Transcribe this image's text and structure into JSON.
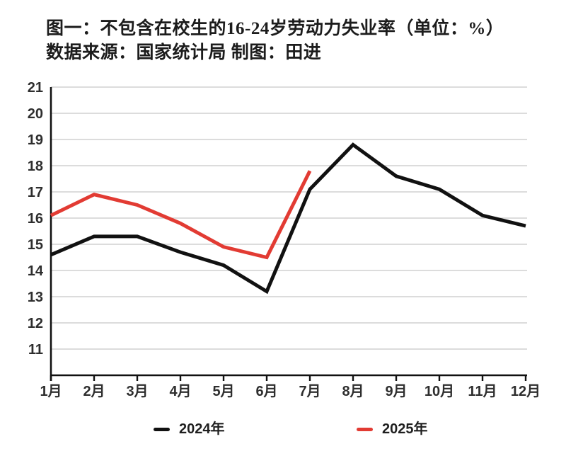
{
  "title": {
    "line1": "图一：不包含在校生的16-24岁劳动力失业率（单位：%）",
    "line2": "数据来源：国家统计局 制图：田进"
  },
  "chart_data": {
    "type": "line",
    "title": "不包含在校生的16-24岁劳动力失业率（单位：%）",
    "source": "数据来源：国家统计局 制图：田进",
    "categories": [
      "1月",
      "2月",
      "3月",
      "4月",
      "5月",
      "6月",
      "7月",
      "8月",
      "9月",
      "10月",
      "11月",
      "12月"
    ],
    "series": [
      {
        "name": "2024年",
        "color": "#111111",
        "values": [
          14.6,
          15.3,
          15.3,
          14.7,
          14.2,
          13.2,
          17.1,
          18.8,
          17.6,
          17.1,
          16.1,
          15.7
        ]
      },
      {
        "name": "2025年",
        "color": "#e23b33",
        "values": [
          16.1,
          16.9,
          16.5,
          15.8,
          14.9,
          14.5,
          17.8
        ]
      }
    ],
    "xlabel": "",
    "ylabel": "",
    "ylim": [
      10,
      21
    ],
    "yticks": [
      11,
      12,
      13,
      14,
      15,
      16,
      17,
      18,
      19,
      20,
      21
    ],
    "grid": true,
    "legend_position": "bottom"
  },
  "colors": {
    "grid": "#c7c7c7",
    "axis": "#111111",
    "tick_label": "#2e2e2e",
    "background": "#ffffff"
  }
}
